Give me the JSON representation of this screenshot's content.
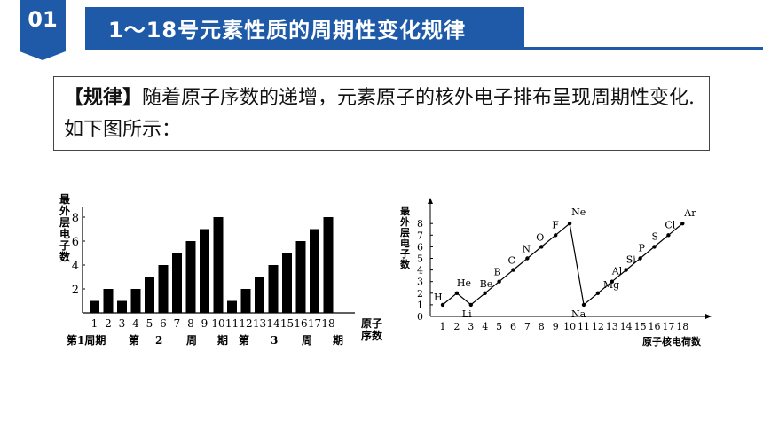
{
  "header": {
    "badge_number": "01",
    "title": "1～18号元素性质的周期性变化规律"
  },
  "rule": {
    "label": "【规律】",
    "text": "随着原子序数的递增，元素原子的核外电子排布呈现周期性变化.如下图所示："
  },
  "colors": {
    "accent": "#1e5aa8"
  },
  "chart_data": [
    {
      "type": "bar",
      "ylabel": "最外层电子数",
      "xlabel": "原子序数",
      "yticks": [
        2,
        4,
        6,
        8
      ],
      "ylim": [
        0,
        8
      ],
      "categories": [
        "1",
        "2",
        "3",
        "4",
        "5",
        "6",
        "7",
        "8",
        "9",
        "10",
        "11",
        "12",
        "13",
        "14",
        "15",
        "16",
        "17",
        "18"
      ],
      "values": [
        1,
        2,
        1,
        2,
        3,
        4,
        5,
        6,
        7,
        8,
        1,
        2,
        3,
        4,
        5,
        6,
        7,
        8
      ],
      "period_labels": [
        "第1周期",
        "第",
        "2",
        "周",
        "期",
        "第",
        "3",
        "周",
        "期"
      ]
    },
    {
      "type": "line",
      "ylabel": "最外层电子数",
      "xlabel": "原子核电荷数",
      "yticks": [
        0,
        1,
        2,
        3,
        4,
        5,
        6,
        7,
        8
      ],
      "ylim": [
        0,
        8
      ],
      "x": [
        1,
        2,
        3,
        4,
        5,
        6,
        7,
        8,
        9,
        10,
        11,
        12,
        13,
        14,
        15,
        16,
        17,
        18
      ],
      "xtick_labels": [
        "1",
        "2",
        "3",
        "4",
        "5",
        "6",
        "7",
        "8",
        "9",
        "10",
        "11",
        "12",
        "13",
        "14",
        "15",
        "16",
        "17",
        "18"
      ],
      "y": [
        1,
        2,
        1,
        2,
        3,
        4,
        5,
        6,
        7,
        8,
        1,
        2,
        3,
        4,
        5,
        6,
        7,
        8
      ],
      "point_labels": [
        "H",
        "He",
        "Li",
        "Be",
        "B",
        "C",
        "N",
        "O",
        "F",
        "Ne",
        "Na",
        "Mg",
        "Al",
        "Si",
        "P",
        "S",
        "Cl",
        "Ar"
      ]
    }
  ]
}
